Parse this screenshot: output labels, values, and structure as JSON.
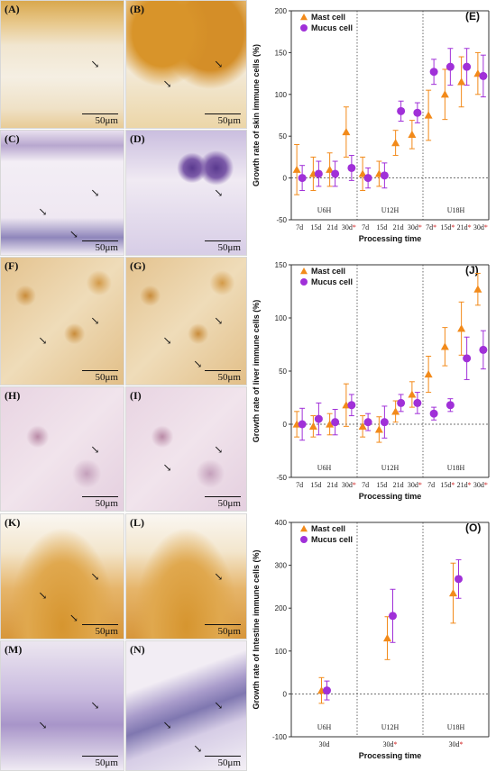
{
  "panels": [
    {
      "label": "(A)",
      "scale": "50μm",
      "stain": "dab",
      "theme": "skin"
    },
    {
      "label": "(B)",
      "scale": "50μm",
      "stain": "dab",
      "theme": "skin2"
    },
    {
      "label": "(C)",
      "scale": "50μm",
      "stain": "he",
      "theme": "skin"
    },
    {
      "label": "(D)",
      "scale": "50μm",
      "stain": "he",
      "theme": "skin2"
    },
    {
      "label": "(F)",
      "scale": "50μm",
      "stain": "dab",
      "theme": "liver"
    },
    {
      "label": "(G)",
      "scale": "50μm",
      "stain": "dab",
      "theme": "liver"
    },
    {
      "label": "(H)",
      "scale": "50μm",
      "stain": "he",
      "theme": "liver"
    },
    {
      "label": "(I)",
      "scale": "50μm",
      "stain": "he",
      "theme": "liver"
    },
    {
      "label": "(K)",
      "scale": "50μm",
      "stain": "dab",
      "theme": "intestine"
    },
    {
      "label": "(L)",
      "scale": "50μm",
      "stain": "dab",
      "theme": "intestine"
    },
    {
      "label": "(M)",
      "scale": "50μm",
      "stain": "he",
      "theme": "intestine"
    },
    {
      "label": "(N)",
      "scale": "50μm",
      "stain": "he",
      "theme": "intestine2"
    }
  ],
  "chart_data": [
    {
      "type": "scatter",
      "panel_label": "(E)",
      "ylabel": "Growth rate of skin immune cells (%)",
      "xlabel": "Processing time",
      "ylim": [
        -50,
        200
      ],
      "yticks": [
        -50,
        0,
        50,
        100,
        150,
        200
      ],
      "group_labels": [
        "U6H",
        "U12H",
        "U18H"
      ],
      "categories": [
        "7d",
        "15d",
        "21d",
        "30d",
        "7d",
        "15d",
        "21d",
        "30d",
        "7d",
        "15d",
        "21d",
        "30d"
      ],
      "marked": [
        false,
        false,
        false,
        true,
        false,
        false,
        false,
        true,
        true,
        true,
        true,
        true
      ],
      "star": "*",
      "legend": [
        "Mast cell",
        "Mucus cell"
      ],
      "series": [
        {
          "name": "Mast cell",
          "color": "#f28a1a",
          "values": [
            10,
            5,
            10,
            55,
            5,
            5,
            42,
            52,
            75,
            100,
            115,
            125
          ],
          "err": [
            30,
            20,
            20,
            30,
            20,
            15,
            15,
            17,
            30,
            30,
            30,
            25
          ]
        },
        {
          "name": "Mucus cell",
          "color": "#a030d8",
          "values": [
            0,
            5,
            5,
            12,
            0,
            3,
            80,
            78,
            127,
            133,
            133,
            122
          ],
          "err": [
            15,
            15,
            15,
            15,
            12,
            15,
            12,
            12,
            15,
            22,
            22,
            25
          ]
        }
      ]
    },
    {
      "type": "scatter",
      "panel_label": "(J)",
      "ylabel": "Growth rate of liver immune cells (%)",
      "xlabel": "Processing time",
      "ylim": [
        -50,
        150
      ],
      "yticks": [
        -50,
        0,
        50,
        100,
        150
      ],
      "group_labels": [
        "U6H",
        "U12H",
        "U18H"
      ],
      "categories": [
        "7d",
        "15d",
        "21d",
        "30d",
        "7d",
        "15d",
        "21d",
        "30d",
        "7d",
        "15d",
        "21d",
        "30d"
      ],
      "marked": [
        false,
        false,
        false,
        true,
        false,
        false,
        false,
        true,
        false,
        true,
        true,
        true
      ],
      "star": "*",
      "legend": [
        "Mast cell",
        "Mucus cell"
      ],
      "series": [
        {
          "name": "Mast cell",
          "color": "#f28a1a",
          "values": [
            0,
            -2,
            0,
            18,
            -2,
            -5,
            12,
            28,
            47,
            73,
            90,
            127
          ],
          "err": [
            12,
            10,
            10,
            20,
            10,
            12,
            10,
            12,
            17,
            18,
            25,
            15
          ]
        },
        {
          "name": "Mucus cell",
          "color": "#a030d8",
          "values": [
            0,
            5,
            2,
            18,
            2,
            2,
            20,
            20,
            10,
            18,
            62,
            70
          ],
          "err": [
            15,
            15,
            12,
            10,
            8,
            15,
            8,
            10,
            6,
            6,
            20,
            18
          ]
        }
      ]
    },
    {
      "type": "scatter",
      "panel_label": "(O)",
      "ylabel": "Growth rate of Intestine immune cells (%)",
      "xlabel": "Processing time",
      "ylim": [
        -100,
        400
      ],
      "yticks": [
        -100,
        0,
        100,
        200,
        300,
        400
      ],
      "group_labels": [
        "U6H",
        "U12H",
        "U18H"
      ],
      "categories": [
        "30d",
        "30d",
        "30d"
      ],
      "marked": [
        false,
        true,
        true
      ],
      "star": "*",
      "legend": [
        "Mast cell",
        "Mucus cell"
      ],
      "series": [
        {
          "name": "Mast cell",
          "color": "#f28a1a",
          "values": [
            8,
            130,
            235
          ],
          "err": [
            30,
            50,
            70
          ]
        },
        {
          "name": "Mucus cell",
          "color": "#a030d8",
          "values": [
            8,
            182,
            268
          ],
          "err": [
            22,
            62,
            45
          ]
        }
      ]
    }
  ]
}
